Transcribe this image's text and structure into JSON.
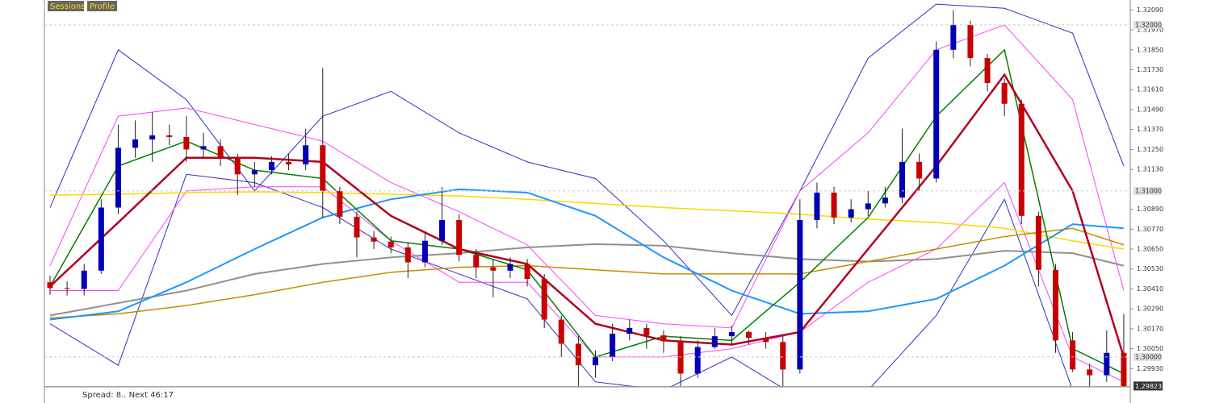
{
  "ui": {
    "buttons": [
      "Sessions",
      "Profile"
    ],
    "status_text": "Spread: 8.. Next 46:17"
  },
  "chart_data": {
    "type": "candlestick",
    "ylim": [
      1.2982,
      1.3215
    ],
    "yticks": [
      {
        "value": 1.3209,
        "label": "1.32090"
      },
      {
        "value": 1.3197,
        "label": "1.31970"
      },
      {
        "value": 1.3185,
        "label": "1.31850"
      },
      {
        "value": 1.3173,
        "label": "1.31730"
      },
      {
        "value": 1.3161,
        "label": "1.31610"
      },
      {
        "value": 1.3149,
        "label": "1.31490"
      },
      {
        "value": 1.3137,
        "label": "1.31370"
      },
      {
        "value": 1.3125,
        "label": "1.31250"
      },
      {
        "value": 1.3113,
        "label": "1.31130"
      },
      {
        "value": 1.3089,
        "label": "1.30890"
      },
      {
        "value": 1.3077,
        "label": "1.30770"
      },
      {
        "value": 1.3065,
        "label": "1.30650"
      },
      {
        "value": 1.3053,
        "label": "1.30530"
      },
      {
        "value": 1.3041,
        "label": "1.30410"
      },
      {
        "value": 1.3029,
        "label": "1.30290"
      },
      {
        "value": 1.3017,
        "label": "1.30170"
      },
      {
        "value": 1.3005,
        "label": "1.30050"
      },
      {
        "value": 1.2993,
        "label": "1.29930"
      }
    ],
    "levels": [
      {
        "value": 1.32,
        "label": "1.32000"
      },
      {
        "value": 1.31,
        "label": "1.31000"
      },
      {
        "value": 1.3,
        "label": "1.30000"
      }
    ],
    "last_price": {
      "value": 1.29823,
      "label": "1.29823"
    },
    "bull_color": "#0000b4",
    "bear_color": "#c80000",
    "ohlc": [
      [
        1.3045,
        1.3049,
        1.30375,
        1.30415
      ],
      [
        1.30415,
        1.30455,
        1.3037,
        1.3041
      ],
      [
        1.3041,
        1.3056,
        1.3037,
        1.3052
      ],
      [
        1.3052,
        1.3095,
        1.305,
        1.309
      ],
      [
        1.309,
        1.314,
        1.3086,
        1.3126
      ],
      [
        1.3126,
        1.31425,
        1.312,
        1.3131
      ],
      [
        1.3131,
        1.31475,
        1.31175,
        1.31335
      ],
      [
        1.31335,
        1.314,
        1.31275,
        1.31325
      ],
      [
        1.31325,
        1.3145,
        1.31175,
        1.3125
      ],
      [
        1.3125,
        1.3135,
        1.312,
        1.3127
      ],
      [
        1.3127,
        1.3131,
        1.3115,
        1.312
      ],
      [
        1.312,
        1.31225,
        1.30975,
        1.311
      ],
      [
        1.311,
        1.31175,
        1.31025,
        1.31125
      ],
      [
        1.31125,
        1.3121,
        1.311,
        1.31175
      ],
      [
        1.31175,
        1.31225,
        1.31125,
        1.3116
      ],
      [
        1.3116,
        1.31375,
        1.31125,
        1.31275
      ],
      [
        1.31275,
        1.3174,
        1.3084,
        1.31
      ],
      [
        1.31,
        1.31025,
        1.308,
        1.30845
      ],
      [
        1.30845,
        1.30875,
        1.306,
        1.3072
      ],
      [
        1.3072,
        1.3076,
        1.3065,
        1.30695
      ],
      [
        1.30695,
        1.30725,
        1.30625,
        1.3066
      ],
      [
        1.3066,
        1.3069,
        1.30475,
        1.3057
      ],
      [
        1.3057,
        1.3075,
        1.3054,
        1.307
      ],
      [
        1.307,
        1.31025,
        1.30675,
        1.30825
      ],
      [
        1.30825,
        1.3086,
        1.30575,
        1.30615
      ],
      [
        1.30615,
        1.3065,
        1.30475,
        1.3054
      ],
      [
        1.3054,
        1.3059,
        1.3036,
        1.3052
      ],
      [
        1.3052,
        1.306,
        1.30475,
        1.3056
      ],
      [
        1.3056,
        1.3059,
        1.30425,
        1.3047
      ],
      [
        1.3047,
        1.305,
        1.30175,
        1.30225
      ],
      [
        1.30225,
        1.3025,
        1.3,
        1.3008
      ],
      [
        1.3008,
        1.30125,
        1.2975,
        1.2995
      ],
      [
        1.2995,
        1.3004,
        1.29875,
        1.3
      ],
      [
        1.3,
        1.302,
        1.29975,
        1.3014
      ],
      [
        1.3014,
        1.30225,
        1.301,
        1.30175
      ],
      [
        1.30175,
        1.302,
        1.3005,
        1.3013
      ],
      [
        1.3013,
        1.3016,
        1.30025,
        1.30095
      ],
      [
        1.30095,
        1.30125,
        1.29825,
        1.299
      ],
      [
        1.299,
        1.301,
        1.29875,
        1.3006
      ],
      [
        1.3006,
        1.30175,
        1.3005,
        1.30125
      ],
      [
        1.30125,
        1.3019,
        1.30075,
        1.3015
      ],
      [
        1.3015,
        1.3016,
        1.30075,
        1.30115
      ],
      [
        1.30115,
        1.3015,
        1.3005,
        1.3009
      ],
      [
        1.3009,
        1.30125,
        1.2971,
        1.29925
      ],
      [
        1.29925,
        1.3095,
        1.299,
        1.30825
      ],
      [
        1.30825,
        1.3105,
        1.30775,
        1.3099
      ],
      [
        1.3099,
        1.31025,
        1.308,
        1.3084
      ],
      [
        1.3084,
        1.3095,
        1.3081,
        1.3089
      ],
      [
        1.3089,
        1.31,
        1.3085,
        1.30925
      ],
      [
        1.30925,
        1.31025,
        1.309,
        1.3096
      ],
      [
        1.3096,
        1.31375,
        1.30925,
        1.31175
      ],
      [
        1.31175,
        1.31225,
        1.31,
        1.31075
      ],
      [
        1.31075,
        1.319,
        1.3105,
        1.3185
      ],
      [
        1.3185,
        1.3209,
        1.318,
        1.32
      ],
      [
        1.32,
        1.32025,
        1.3175,
        1.318
      ],
      [
        1.318,
        1.31825,
        1.316,
        1.3165
      ],
      [
        1.3165,
        1.31675,
        1.3145,
        1.31525
      ],
      [
        1.31525,
        1.3155,
        1.308,
        1.3085
      ],
      [
        1.3085,
        1.30875,
        1.30425,
        1.30525
      ],
      [
        1.30525,
        1.3056,
        1.30025,
        1.301
      ],
      [
        1.301,
        1.3015,
        1.2991,
        1.29925
      ],
      [
        1.29925,
        1.2996,
        1.2981,
        1.2989
      ],
      [
        1.2989,
        1.3016,
        1.2985,
        1.30025
      ],
      [
        1.30025,
        1.3026,
        1.2982,
        1.29823
      ]
    ],
    "indicator_x": [
      0,
      4,
      8,
      12,
      16,
      20,
      24,
      28,
      32,
      36,
      40,
      44,
      48,
      52,
      56,
      60,
      63
    ],
    "indicators": [
      {
        "color": "#3030c0",
        "width": 1,
        "values": [
          1.309,
          1.3185,
          1.3155,
          1.31,
          1.3145,
          1.316,
          1.3135,
          1.31175,
          1.31075,
          1.307,
          1.3025,
          1.31,
          1.318,
          1.32125,
          1.321,
          1.3195,
          1.3115
        ]
      },
      {
        "color": "#3030c0",
        "width": 1,
        "values": [
          1.302,
          1.2995,
          1.311,
          1.3105,
          1.309,
          1.3065,
          1.305,
          1.3035,
          1.2985,
          1.298,
          1.3,
          1.2975,
          1.298,
          1.3025,
          1.3095,
          1.298,
          1.2975
        ]
      },
      {
        "color": "#ff40ff",
        "width": 1,
        "values": [
          1.3055,
          1.3145,
          1.315,
          1.314,
          1.313,
          1.3105,
          1.30875,
          1.30675,
          1.3025,
          1.302,
          1.30175,
          1.31,
          1.3135,
          1.3185,
          1.32,
          1.3155,
          1.304
        ]
      },
      {
        "color": "#ff40ff",
        "width": 1,
        "values": [
          1.304,
          1.304,
          1.31,
          1.31025,
          1.31025,
          1.307,
          1.3045,
          1.3045,
          1.3,
          1.3,
          1.3005,
          1.3015,
          1.3045,
          1.3065,
          1.3105,
          1.3,
          1.2985
        ]
      },
      {
        "color": "#ffd700",
        "width": 1.5,
        "values": [
          1.30975,
          1.3098,
          1.3099,
          1.30995,
          1.3099,
          1.3098,
          1.3097,
          1.3095,
          1.30925,
          1.309,
          1.3088,
          1.3086,
          1.3083,
          1.3081,
          1.30775,
          1.307,
          1.3065
        ]
      },
      {
        "color": "#909090",
        "width": 2,
        "values": [
          1.3025,
          1.30325,
          1.304,
          1.305,
          1.3056,
          1.306,
          1.30625,
          1.3066,
          1.3068,
          1.3067,
          1.30625,
          1.3059,
          1.30575,
          1.3059,
          1.3064,
          1.30625,
          1.3055
        ]
      },
      {
        "color": "#c88a00",
        "width": 1.5,
        "values": [
          1.30235,
          1.3026,
          1.3031,
          1.30375,
          1.3045,
          1.3051,
          1.3054,
          1.3055,
          1.30525,
          1.305,
          1.305,
          1.305,
          1.30575,
          1.3065,
          1.30725,
          1.30775,
          1.30675
        ]
      },
      {
        "color": "#1e96ff",
        "width": 2,
        "values": [
          1.30225,
          1.30275,
          1.3045,
          1.3065,
          1.3084,
          1.3095,
          1.3101,
          1.3099,
          1.3085,
          1.306,
          1.304,
          1.3026,
          1.30275,
          1.3035,
          1.3055,
          1.308,
          1.30775
        ]
      },
      {
        "color": "#008000",
        "width": 1.5,
        "values": [
          1.30425,
          1.3115,
          1.313,
          1.31125,
          1.31075,
          1.307,
          1.3065,
          1.30525,
          1.3,
          1.30125,
          1.301,
          1.3045,
          1.3084,
          1.3145,
          1.3185,
          1.3005,
          1.299
        ]
      },
      {
        "color": "#b40020",
        "width": 2.5,
        "values": [
          1.30425,
          1.3081,
          1.312,
          1.312,
          1.31175,
          1.3085,
          1.3065,
          1.3056,
          1.302,
          1.301,
          1.30075,
          1.3015,
          1.3065,
          1.3115,
          1.317,
          1.31,
          1.3
        ]
      }
    ]
  }
}
